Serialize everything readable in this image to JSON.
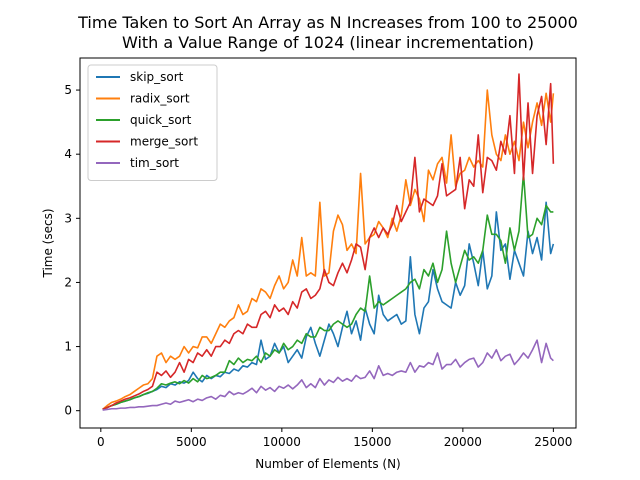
{
  "chart_data": {
    "type": "line",
    "title": "Time Taken to Sort An Array as N Increases from 100 to 25000",
    "subtitle": "With a Value Range of 1024 (linear incrementation)",
    "xlabel": "Number of Elements (N)",
    "ylabel": "Time (secs)",
    "xlim": [
      -1150,
      26250
    ],
    "ylim": [
      -0.27,
      5.5
    ],
    "xticks": [
      0,
      5000,
      10000,
      15000,
      20000,
      25000
    ],
    "yticks": [
      0,
      1,
      2,
      3,
      4,
      5
    ],
    "grid": false,
    "legend_position": "top-left",
    "x": [
      100,
      350,
      600,
      850,
      1100,
      1350,
      1600,
      1850,
      2100,
      2350,
      2600,
      2850,
      3100,
      3350,
      3600,
      3850,
      4100,
      4350,
      4600,
      4850,
      5100,
      5350,
      5600,
      5850,
      6100,
      6350,
      6600,
      6850,
      7100,
      7350,
      7600,
      7850,
      8100,
      8350,
      8600,
      8850,
      9100,
      9350,
      9600,
      9850,
      10100,
      10350,
      10600,
      10850,
      11100,
      11350,
      11600,
      11850,
      12100,
      12350,
      12600,
      12850,
      13100,
      13350,
      13600,
      13850,
      14100,
      14350,
      14600,
      14850,
      15100,
      15350,
      15600,
      15850,
      16100,
      16350,
      16600,
      16850,
      17100,
      17350,
      17600,
      17850,
      18100,
      18350,
      18600,
      18850,
      19100,
      19350,
      19600,
      19850,
      20100,
      20350,
      20600,
      20850,
      21100,
      21350,
      21600,
      21850,
      22100,
      22350,
      22600,
      22850,
      23100,
      23350,
      23600,
      23850,
      24100,
      24350,
      24600,
      24850,
      25000
    ],
    "series": [
      {
        "name": "skip_sort",
        "color": "#1f77b4",
        "values": [
          0.02,
          0.05,
          0.08,
          0.1,
          0.13,
          0.15,
          0.17,
          0.2,
          0.22,
          0.25,
          0.27,
          0.3,
          0.33,
          0.38,
          0.36,
          0.42,
          0.4,
          0.45,
          0.43,
          0.47,
          0.6,
          0.5,
          0.45,
          0.55,
          0.5,
          0.55,
          0.53,
          0.6,
          0.58,
          0.65,
          0.62,
          0.7,
          0.68,
          0.75,
          0.72,
          1.1,
          0.8,
          0.85,
          1.05,
          0.9,
          1.0,
          0.75,
          0.85,
          0.95,
          0.82,
          1.15,
          1.3,
          1.05,
          0.85,
          1.1,
          1.35,
          1.2,
          1.0,
          1.3,
          1.55,
          1.2,
          1.4,
          1.1,
          1.6,
          1.35,
          1.2,
          1.8,
          1.5,
          1.4,
          1.45,
          1.5,
          1.35,
          1.4,
          2.4,
          1.5,
          1.2,
          1.6,
          1.7,
          2.2,
          1.9,
          1.7,
          1.65,
          1.6,
          2.0,
          1.8,
          1.95,
          2.6,
          2.3,
          1.95,
          2.5,
          1.9,
          2.1,
          3.1,
          2.5,
          2.6,
          2.05,
          2.5,
          2.3,
          2.1,
          2.8,
          2.45,
          2.7,
          2.35,
          3.25,
          2.45,
          2.6
        ]
      },
      {
        "name": "radix_sort",
        "color": "#ff7f0e",
        "values": [
          0.02,
          0.08,
          0.13,
          0.15,
          0.18,
          0.22,
          0.25,
          0.3,
          0.35,
          0.4,
          0.42,
          0.5,
          0.85,
          0.9,
          0.75,
          0.85,
          0.8,
          0.85,
          1.0,
          0.9,
          1.0,
          0.98,
          1.15,
          1.15,
          1.05,
          1.2,
          1.35,
          1.3,
          1.4,
          1.45,
          1.65,
          1.5,
          1.55,
          1.75,
          1.7,
          1.9,
          1.85,
          1.75,
          1.95,
          2.1,
          1.9,
          2.0,
          2.35,
          2.1,
          2.7,
          2.1,
          2.15,
          2.1,
          3.25,
          2.1,
          2.15,
          2.8,
          3.05,
          2.9,
          2.5,
          2.6,
          2.45,
          3.7,
          2.6,
          2.7,
          2.75,
          2.95,
          2.85,
          2.7,
          3.0,
          2.8,
          3.05,
          3.6,
          3.2,
          3.45,
          3.3,
          2.95,
          3.75,
          3.6,
          3.85,
          3.95,
          3.55,
          4.3,
          3.5,
          3.7,
          3.75,
          3.95,
          3.8,
          3.9,
          3.8,
          5.0,
          4.3,
          4.0,
          3.9,
          4.3,
          4.0,
          4.2,
          3.9,
          4.5,
          4.1,
          4.5,
          4.8,
          4.45,
          4.95,
          4.5,
          4.95
        ]
      },
      {
        "name": "quick_sort",
        "color": "#2ca02c",
        "values": [
          0.02,
          0.05,
          0.08,
          0.1,
          0.13,
          0.15,
          0.17,
          0.2,
          0.22,
          0.25,
          0.28,
          0.3,
          0.35,
          0.42,
          0.4,
          0.43,
          0.45,
          0.42,
          0.47,
          0.43,
          0.5,
          0.45,
          0.55,
          0.5,
          0.52,
          0.55,
          0.6,
          0.6,
          0.78,
          0.72,
          0.82,
          0.75,
          0.8,
          0.78,
          0.85,
          0.75,
          0.9,
          0.85,
          0.95,
          0.9,
          1.05,
          0.95,
          1.0,
          1.1,
          1.05,
          1.2,
          1.15,
          1.15,
          1.3,
          1.25,
          1.25,
          1.35,
          1.4,
          1.35,
          1.3,
          1.35,
          1.5,
          1.6,
          1.55,
          2.1,
          1.6,
          1.7,
          1.65,
          1.7,
          1.75,
          1.8,
          1.85,
          1.9,
          2.0,
          2.05,
          1.9,
          2.2,
          2.1,
          2.3,
          2.0,
          2.2,
          2.8,
          2.3,
          2.0,
          2.25,
          2.5,
          2.35,
          2.4,
          2.3,
          2.5,
          3.05,
          2.75,
          2.75,
          2.65,
          2.3,
          2.85,
          2.5,
          2.8,
          3.7,
          2.7,
          2.75,
          3.0,
          2.9,
          3.2,
          3.1,
          3.1
        ]
      },
      {
        "name": "merge_sort",
        "color": "#d62728",
        "values": [
          0.02,
          0.05,
          0.08,
          0.12,
          0.15,
          0.18,
          0.2,
          0.23,
          0.26,
          0.3,
          0.33,
          0.38,
          0.6,
          0.55,
          0.62,
          0.52,
          0.6,
          0.75,
          0.6,
          0.8,
          0.75,
          0.9,
          0.85,
          0.95,
          0.85,
          1.0,
          1.0,
          1.1,
          1.05,
          1.2,
          1.25,
          1.2,
          1.35,
          1.3,
          1.3,
          1.5,
          1.55,
          1.45,
          1.65,
          1.55,
          1.6,
          1.5,
          1.7,
          1.6,
          1.85,
          1.9,
          1.75,
          1.8,
          1.9,
          2.2,
          2.0,
          1.95,
          2.15,
          2.3,
          2.15,
          2.35,
          2.6,
          2.55,
          2.2,
          2.7,
          2.85,
          2.7,
          2.85,
          2.75,
          2.9,
          3.2,
          2.95,
          3.1,
          3.25,
          3.95,
          3.1,
          3.3,
          3.25,
          3.2,
          3.35,
          3.85,
          3.35,
          3.4,
          3.45,
          3.95,
          3.15,
          3.6,
          3.5,
          4.3,
          3.4,
          3.95,
          3.9,
          3.75,
          4.2,
          4.0,
          4.6,
          3.7,
          5.25,
          3.6,
          4.8,
          3.7,
          4.6,
          4.9,
          4.15,
          5.1,
          3.85
        ]
      },
      {
        "name": "tim_sort",
        "color": "#9467bd",
        "values": [
          0.01,
          0.02,
          0.03,
          0.03,
          0.04,
          0.04,
          0.05,
          0.05,
          0.06,
          0.06,
          0.07,
          0.08,
          0.08,
          0.1,
          0.12,
          0.1,
          0.15,
          0.13,
          0.15,
          0.17,
          0.14,
          0.18,
          0.16,
          0.2,
          0.22,
          0.18,
          0.24,
          0.22,
          0.3,
          0.25,
          0.28,
          0.26,
          0.3,
          0.35,
          0.28,
          0.38,
          0.32,
          0.36,
          0.3,
          0.38,
          0.35,
          0.4,
          0.34,
          0.4,
          0.48,
          0.36,
          0.42,
          0.36,
          0.5,
          0.4,
          0.48,
          0.44,
          0.52,
          0.46,
          0.5,
          0.46,
          0.55,
          0.5,
          0.52,
          0.62,
          0.5,
          0.7,
          0.55,
          0.58,
          0.55,
          0.6,
          0.62,
          0.6,
          0.75,
          0.6,
          0.7,
          0.68,
          0.75,
          0.72,
          0.9,
          0.65,
          0.72,
          0.72,
          0.8,
          0.68,
          0.75,
          0.8,
          0.82,
          0.68,
          0.75,
          0.9,
          0.82,
          0.95,
          0.78,
          0.85,
          0.88,
          0.72,
          0.8,
          0.9,
          0.82,
          0.95,
          1.1,
          0.75,
          1.05,
          0.82,
          0.78
        ]
      }
    ]
  }
}
